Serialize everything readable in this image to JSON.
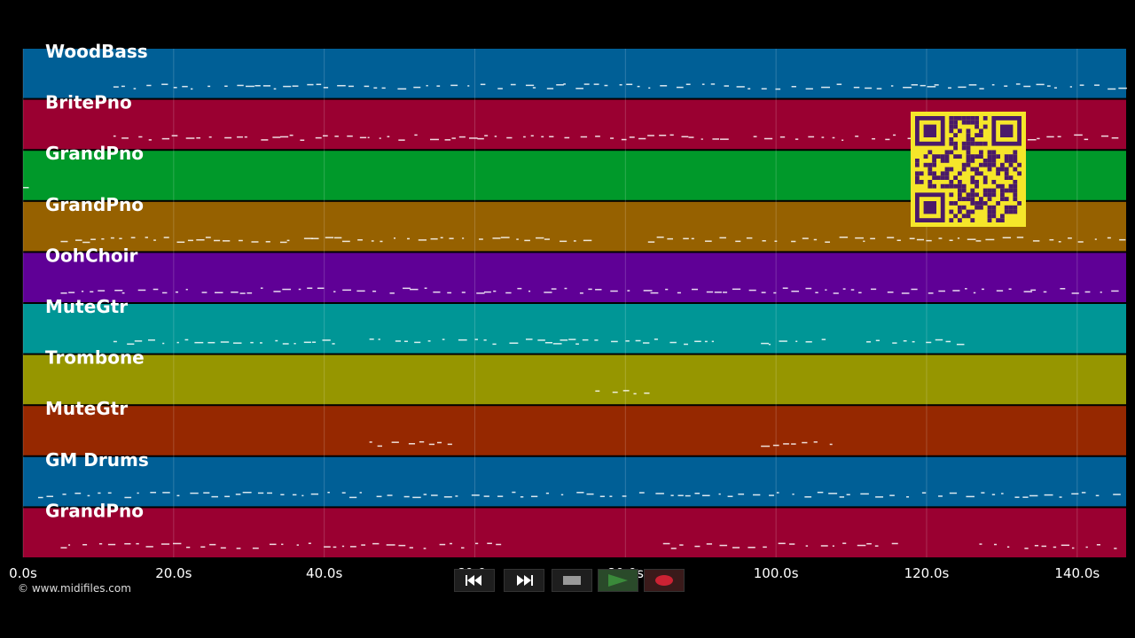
{
  "tracks": [
    {
      "name": "WoodBass",
      "color": "#005f96"
    },
    {
      "name": "BritePno",
      "color": "#9a0031"
    },
    {
      "name": "GrandPno",
      "color": "#00992a"
    },
    {
      "name": "GrandPno",
      "color": "#966100"
    },
    {
      "name": "OohChoir",
      "color": "#5f0096"
    },
    {
      "name": "MuteGtr",
      "color": "#009696"
    },
    {
      "name": "Trombone",
      "color": "#969600"
    },
    {
      "name": "MuteGtr",
      "color": "#962800"
    },
    {
      "name": "GM Drums",
      "color": "#005f96"
    },
    {
      "name": "GrandPno",
      "color": "#9a0031"
    }
  ],
  "timeline": {
    "tick_labels": [
      "0.0s",
      "20.0s",
      "40.0s",
      "60.0s",
      "80.0s",
      "100.0s",
      "120.0s",
      "140.0s"
    ],
    "tick_values": [
      0,
      20,
      40,
      60,
      80,
      100,
      120,
      140
    ],
    "max_seconds": 146.5
  },
  "copyright": "© www.midifiles.com",
  "transport": {
    "rewind_icon": "rewind-icon",
    "fastforward_icon": "fast-forward-icon",
    "stop_icon": "stop-icon",
    "play_icon": "play-icon",
    "record_icon": "record-icon",
    "play_color": "#3a8a3a",
    "record_color": "#cc2233"
  },
  "qr_code": {
    "color_bg": "#f5e62a",
    "color_fg": "#4a1a6a"
  }
}
